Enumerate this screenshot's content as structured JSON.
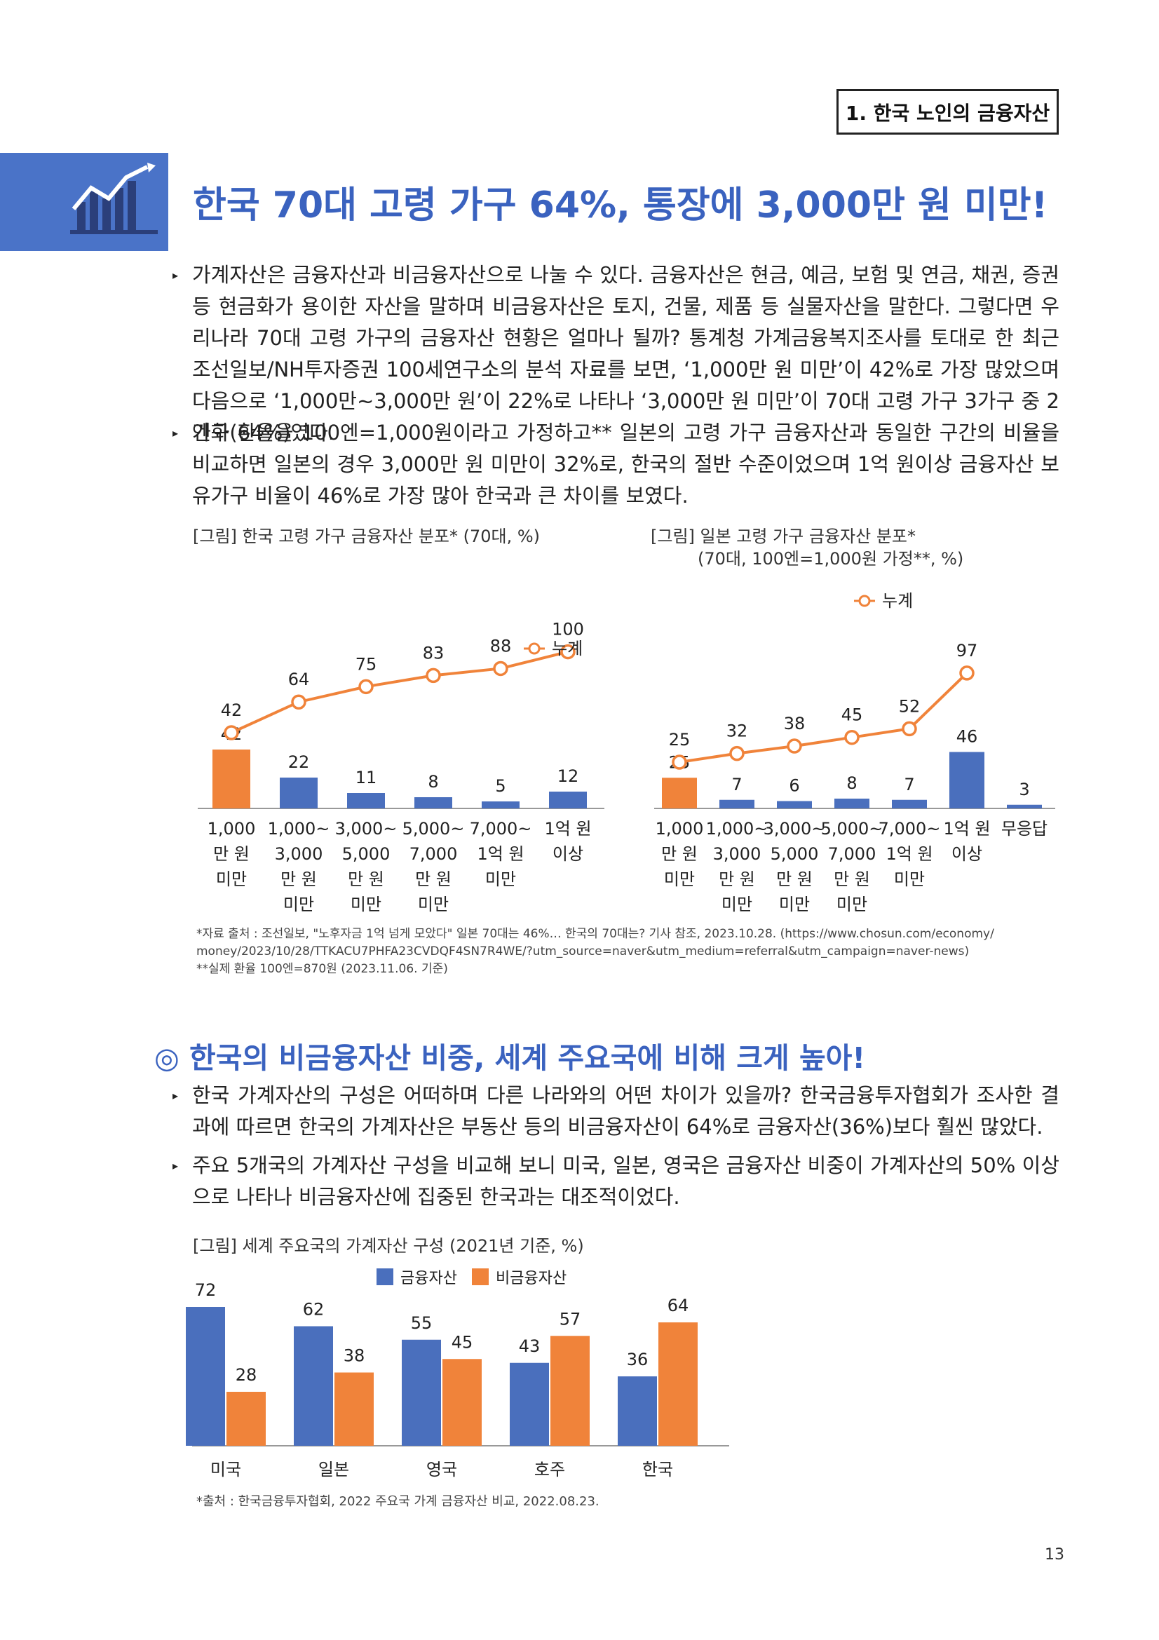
{
  "section_tag": "1. 한국 노인의 금융자산",
  "main_title": "한국 70대 고령 가구 64%, 통장에 3,000만 원 미만!",
  "paragraphs": [
    "가계자산은 금융자산과 비금융자산으로 나눌 수 있다. 금융자산은 현금, 예금, 보험 및 연금, 채권, 증권 등 현금화가 용이한 자산을 말하며 비금융자산은 토지, 건물, 제품 등 실물자산을 말한다. 그렇다면 우리나라 70대 고령 가구의 금융자산 현황은 얼마나 될까? 통계청 가계금융복지조사를 토대로 한 최근 조선일보/NH투자증권 100세연구소의 분석 자료를 보면, ‘1,000만 원 미만’이 42%로 가장 많았으며 다음으로 ‘1,000만~3,000만 원’이 22%로 나타나 ‘3,000만 원 미만’이 70대 고령 가구 3가구 중 2가구(64%)였다.",
    "엔화 환율을 100엔=1,000원이라고 가정하고** 일본의 고령 가구 금융자산과 동일한 구간의 비율을 비교하면 일본의 경우 3,000만 원 미만이 32%로, 한국의 절반 수준이었으며 1억 원이상 금융자산 보유가구 비율이 46%로 가장 많아 한국과 큰 차이를 보였다.",
    "한국 가계자산의 구성은 어떠하며 다른 나라와의 어떤 차이가 있을까? 한국금융투자협회가 조사한 결과에 따르면 한국의 가계자산은 부동산 등의 비금융자산이 64%로 금융자산(36%)보다 훨씬 많았다.",
    "주요 5개국의 가계자산 구성을 비교해 보니 미국, 일본, 영국은 금융자산 비중이 가계자산의 50% 이상으로 나타나 비금융자산에 집중된 한국과는 대조적이었다."
  ],
  "sub_title": "◎ 한국의 비금융자산 비중, 세계 주요국에 비해 크게 높아!",
  "footnotes_1": [
    "*자료 출처 : 조선일보, \"노후자금 1억 넘게 모았다\" 일본 70대는 46%… 한국의 70대는? 기사 참조, 2023.10.28. (https://www.chosun.com/economy/",
    "money/2023/10/28/TTKACU7PHFA23CVDQF4SN7R4WE/?utm_source=naver&utm_medium=referral&utm_campaign=naver-news)",
    "**실제 환율 100엔=870원 (2023.11.06. 기준)"
  ],
  "footnote_2": "*출처 : 한국금융투자협회, 2022 주요국 가계 금융자산 비교, 2022.08.23.",
  "page_number": "13",
  "colors": {
    "blue": "#4a6fbd",
    "orange": "#f0833a",
    "title_blue": "#3a62bf"
  },
  "chart_data": [
    {
      "type": "bar",
      "title": "[그림] 한국 고령 가구 금융자산 분포* (70대, %)",
      "categories": [
        [
          "1,000",
          "만 원",
          "미만"
        ],
        [
          "1,000~",
          "3,000",
          "만 원",
          "미만"
        ],
        [
          "3,000~",
          "5,000",
          "만 원",
          "미만"
        ],
        [
          "5,000~",
          "7,000",
          "만 원",
          "미만"
        ],
        [
          "7,000~",
          "1억 원",
          "미만"
        ],
        [
          "1억 원",
          "이상"
        ]
      ],
      "values": [
        42,
        22,
        11,
        8,
        5,
        12
      ],
      "cumulative": {
        "name": "누계",
        "values": [
          42,
          64,
          75,
          83,
          88,
          100
        ]
      },
      "bar_colors": [
        "#f0833a",
        "#4a6fbd",
        "#4a6fbd",
        "#4a6fbd",
        "#4a6fbd",
        "#4a6fbd"
      ]
    },
    {
      "type": "bar",
      "title": [
        "[그림] 일본 고령 가구 금융자산 분포*",
        "(70대, 100엔=1,000원 가정**, %)"
      ],
      "categories": [
        [
          "1,000",
          "만 원",
          "미만"
        ],
        [
          "1,000~",
          "3,000",
          "만 원",
          "미만"
        ],
        [
          "3,000~",
          "5,000",
          "만 원",
          "미만"
        ],
        [
          "5,000~",
          "7,000",
          "만 원",
          "미만"
        ],
        [
          "7,000~",
          "1억 원",
          "미만"
        ],
        [
          "1억 원",
          "이상"
        ],
        [
          "무응답"
        ]
      ],
      "values": [
        25,
        7,
        6,
        8,
        7,
        46,
        3
      ],
      "cumulative": {
        "name": "누계",
        "values": [
          25,
          32,
          38,
          45,
          52,
          97
        ]
      },
      "bar_colors": [
        "#f0833a",
        "#4a6fbd",
        "#4a6fbd",
        "#4a6fbd",
        "#4a6fbd",
        "#4a6fbd",
        "#4a6fbd"
      ]
    },
    {
      "type": "bar",
      "title": "[그림] 세계 주요국의 가계자산 구성 (2021년 기준, %)",
      "categories": [
        "미국",
        "일본",
        "영국",
        "호주",
        "한국"
      ],
      "series": [
        {
          "name": "금융자산",
          "values": [
            72,
            62,
            55,
            43,
            36
          ],
          "color": "#4a6fbd"
        },
        {
          "name": "비금융자산",
          "values": [
            28,
            38,
            45,
            57,
            64
          ],
          "color": "#f0833a"
        }
      ]
    }
  ]
}
